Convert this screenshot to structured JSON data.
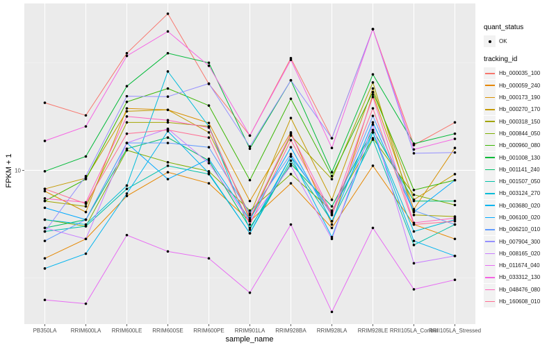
{
  "chart_data": {
    "type": "line",
    "title": "",
    "xlabel": "sample_name",
    "ylabel": "FPKM + 1",
    "yscale": "log10",
    "ylim": [
      1.93,
      59.6
    ],
    "yticks": [
      {
        "value": 10,
        "label": "10"
      }
    ],
    "grid": true,
    "categories": [
      "PB350LA",
      "RRIM600LA",
      "RRIM600LE",
      "RRIM600SE",
      "RRIM600PE",
      "RRIM901LA",
      "RRIM928BA",
      "RRIM928LA",
      "RRIM928LE",
      "RRII105LA_Control",
      "RRII105LA_Stressed"
    ],
    "legend_position": "right",
    "legend": {
      "shape_title": "quant_status",
      "shape_entries": [
        "OK"
      ],
      "color_title": "tracking_id"
    },
    "series": [
      {
        "name": "Hb_000035_100",
        "color": "#F8766D",
        "values": [
          20.6,
          18.0,
          35.0,
          53.4,
          25.2,
          14.5,
          33.2,
          14.1,
          45.3,
          13.1,
          16.7
        ]
      },
      {
        "name": "Hb_000059_240",
        "color": "#E58700",
        "values": [
          3.9,
          4.8,
          7.6,
          9.8,
          8.7,
          5.8,
          8.7,
          5.4,
          10.5,
          5.6,
          4.8
        ]
      },
      {
        "name": "Hb_000173_190",
        "color": "#D89000",
        "values": [
          8.0,
          6.4,
          19.4,
          19.1,
          16.6,
          7.2,
          15.0,
          5.6,
          22.5,
          6.6,
          12.7
        ]
      },
      {
        "name": "Hb_000270_170",
        "color": "#C49A00",
        "values": [
          8.2,
          9.2,
          18.8,
          19.1,
          15.0,
          6.2,
          17.5,
          7.3,
          24.0,
          7.3,
          9.6
        ]
      },
      {
        "name": "Hb_000318_150",
        "color": "#A3A500",
        "values": [
          7.2,
          6.8,
          16.7,
          16.7,
          16.0,
          5.9,
          14.5,
          9.1,
          25.6,
          6.2,
          6.1
        ]
      },
      {
        "name": "Hb_000844_050",
        "color": "#7CAE00",
        "values": [
          5.9,
          5.5,
          12.4,
          10.9,
          9.9,
          6.5,
          9.6,
          6.5,
          14.1,
          7.7,
          6.9
        ]
      },
      {
        "name": "Hb_000960_080",
        "color": "#39B600",
        "values": [
          7.2,
          9.1,
          20.8,
          24.0,
          20.0,
          9.0,
          21.5,
          9.4,
          23.1,
          8.1,
          9.0
        ]
      },
      {
        "name": "Hb_001008_130",
        "color": "#00BA38",
        "values": [
          9.9,
          11.6,
          24.6,
          35.0,
          31.6,
          12.6,
          26.2,
          9.8,
          27.9,
          13.3,
          14.8
        ]
      },
      {
        "name": "Hb_001141_240",
        "color": "#00BE67",
        "values": [
          5.4,
          5.9,
          12.6,
          14.2,
          11.1,
          5.4,
          10.7,
          6.8,
          15.4,
          7.2,
          7.2
        ]
      },
      {
        "name": "Hb_001507_050",
        "color": "#00C1A9",
        "values": [
          5.2,
          5.5,
          8.2,
          10.5,
          9.6,
          5.1,
          11.1,
          5.8,
          13.9,
          4.5,
          5.6
        ]
      },
      {
        "name": "Hb_003124_270",
        "color": "#00BCD8",
        "values": [
          5.9,
          5.6,
          8.5,
          28.8,
          16.0,
          5.3,
          11.6,
          6.4,
          15.0,
          5.2,
          5.9
        ]
      },
      {
        "name": "Hb_003680_020",
        "color": "#00B4EF",
        "values": [
          3.5,
          4.1,
          7.8,
          15.2,
          9.7,
          5.1,
          11.6,
          4.9,
          15.0,
          4.7,
          4.0
        ]
      },
      {
        "name": "Hb_006100_020",
        "color": "#00A9FF",
        "values": [
          6.7,
          5.9,
          13.4,
          9.1,
          11.3,
          5.9,
          12.8,
          5.8,
          16.7,
          6.4,
          9.0
        ]
      },
      {
        "name": "Hb_006210_010",
        "color": "#619CFF",
        "values": [
          4.7,
          5.9,
          13.4,
          13.4,
          12.8,
          6.3,
          11.9,
          6.2,
          17.9,
          6.5,
          5.6
        ]
      },
      {
        "name": "Hb_007904_300",
        "color": "#9590FF",
        "values": [
          5.2,
          9.4,
          22.1,
          22.0,
          25.3,
          12.9,
          26.2,
          14.1,
          45.3,
          12.0,
          12.1
        ]
      },
      {
        "name": "Hb_008165_020",
        "color": "#C77CFF",
        "values": [
          5.4,
          4.8,
          13.4,
          15.6,
          10.8,
          5.8,
          10.5,
          4.8,
          16.3,
          3.7,
          4.0
        ]
      },
      {
        "name": "Hb_011674_040",
        "color": "#E76BF3",
        "values": [
          2.5,
          2.4,
          5.0,
          4.2,
          3.9,
          2.7,
          5.6,
          2.2,
          5.4,
          2.8,
          3.1
        ]
      },
      {
        "name": "Hb_033312_130",
        "color": "#F564E3",
        "values": [
          13.7,
          16.0,
          34.0,
          44.2,
          30.6,
          14.5,
          32.6,
          12.7,
          45.3,
          12.5,
          14.0
        ]
      },
      {
        "name": "Hb_048476_080",
        "color": "#FF62BC",
        "values": [
          7.4,
          7.1,
          17.8,
          17.1,
          15.8,
          6.0,
          14.8,
          6.3,
          21.9,
          5.7,
          6.0
        ]
      },
      {
        "name": "Hb_160608_010",
        "color": "#FF6C91",
        "values": [
          8.2,
          7.0,
          14.8,
          15.4,
          14.2,
          5.6,
          13.8,
          6.2,
          19.4,
          5.6,
          5.8
        ]
      }
    ]
  }
}
